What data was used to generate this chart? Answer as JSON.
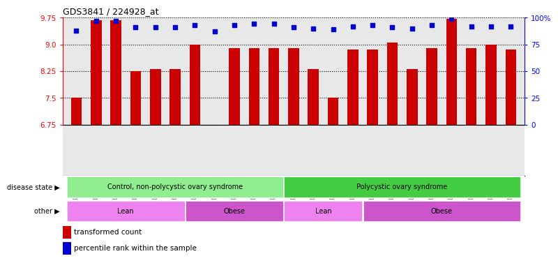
{
  "title": "GDS3841 / 224928_at",
  "samples": [
    "GSM277438",
    "GSM277439",
    "GSM277440",
    "GSM277441",
    "GSM277442",
    "GSM277443",
    "GSM277444",
    "GSM277445",
    "GSM277446",
    "GSM277447",
    "GSM277448",
    "GSM277449",
    "GSM277450",
    "GSM277451",
    "GSM277452",
    "GSM277453",
    "GSM277454",
    "GSM277455",
    "GSM277456",
    "GSM277457",
    "GSM277458",
    "GSM277459",
    "GSM277460"
  ],
  "bar_values": [
    7.5,
    9.68,
    9.68,
    8.25,
    8.3,
    8.3,
    9.0,
    6.65,
    8.9,
    8.9,
    8.9,
    8.9,
    8.3,
    7.5,
    8.85,
    8.85,
    9.05,
    8.3,
    8.9,
    9.72,
    8.9,
    9.0,
    8.85
  ],
  "percentile_values": [
    88,
    97,
    97,
    91,
    91,
    91,
    93,
    87,
    93,
    94,
    94,
    91,
    90,
    89,
    92,
    93,
    91,
    90,
    93,
    99,
    92,
    92,
    92
  ],
  "ylim_left": [
    6.75,
    9.75
  ],
  "ylim_right": [
    0,
    100
  ],
  "yticks_left": [
    6.75,
    7.5,
    8.25,
    9.0,
    9.75
  ],
  "yticks_right": [
    0,
    25,
    50,
    75,
    100
  ],
  "ytick_labels_right": [
    "0",
    "25",
    "50",
    "75",
    "100%"
  ],
  "bar_color": "#cc0000",
  "dot_color": "#0000cc",
  "bar_width": 0.55,
  "disease_state_groups": [
    {
      "label": "Control, non-polycystic ovary syndrome",
      "start": 0,
      "end": 10,
      "color": "#90ee90"
    },
    {
      "label": "Polycystic ovary syndrome",
      "start": 11,
      "end": 22,
      "color": "#44cc44"
    }
  ],
  "other_groups": [
    {
      "label": "Lean",
      "start": 0,
      "end": 5,
      "color": "#ee82ee"
    },
    {
      "label": "Obese",
      "start": 6,
      "end": 10,
      "color": "#cc55cc"
    },
    {
      "label": "Lean",
      "start": 11,
      "end": 14,
      "color": "#ee82ee"
    },
    {
      "label": "Obese",
      "start": 15,
      "end": 22,
      "color": "#cc55cc"
    }
  ],
  "legend_items": [
    "transformed count",
    "percentile rank within the sample"
  ],
  "disease_state_label": "disease state",
  "other_label": "other",
  "background_color": "#ffffff",
  "plot_bg_color": "#e8e8e8",
  "fig_width": 7.84,
  "fig_height": 3.84,
  "dpi": 100
}
